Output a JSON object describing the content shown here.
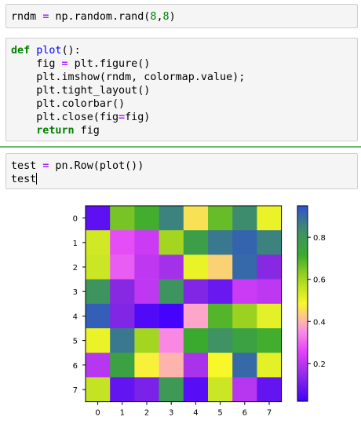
{
  "cells": [
    {
      "tokens": [
        {
          "t": "rndm ",
          "c": ""
        },
        {
          "t": "=",
          "c": "op"
        },
        {
          "t": " np.random.rand(",
          "c": ""
        },
        {
          "t": "8",
          "c": "num"
        },
        {
          "t": ",",
          "c": ""
        },
        {
          "t": "8",
          "c": "num"
        },
        {
          "t": ")",
          "c": ""
        }
      ]
    }
  ],
  "cell2_lines": [
    [
      {
        "t": "def",
        "c": "kw"
      },
      {
        "t": " ",
        "c": ""
      },
      {
        "t": "plot",
        "c": "fn"
      },
      {
        "t": "():",
        "c": ""
      }
    ],
    [
      {
        "t": "    fig ",
        "c": ""
      },
      {
        "t": "=",
        "c": "op"
      },
      {
        "t": " plt.figure()",
        "c": ""
      }
    ],
    [
      {
        "t": "    plt.imshow(rndm, colormap.value);",
        "c": ""
      }
    ],
    [
      {
        "t": "    plt.tight_layout()",
        "c": ""
      }
    ],
    [
      {
        "t": "    plt.colorbar()",
        "c": ""
      }
    ],
    [
      {
        "t": "    plt.close(fig",
        "c": ""
      },
      {
        "t": "=",
        "c": "op"
      },
      {
        "t": "fig)",
        "c": ""
      }
    ],
    [
      {
        "t": "    ",
        "c": ""
      },
      {
        "t": "return",
        "c": "kw"
      },
      {
        "t": " fig",
        "c": ""
      }
    ]
  ],
  "cell3_lines": [
    [
      {
        "t": "test ",
        "c": ""
      },
      {
        "t": "=",
        "c": "op"
      },
      {
        "t": " pn.Row(plot())",
        "c": ""
      }
    ],
    [
      {
        "t": "test",
        "c": ""
      }
    ]
  ],
  "chart_data": {
    "type": "heatmap",
    "x_ticks": [
      "0",
      "1",
      "2",
      "3",
      "4",
      "5",
      "6",
      "7"
    ],
    "y_ticks": [
      "0",
      "1",
      "2",
      "3",
      "4",
      "5",
      "6",
      "7"
    ],
    "colorbar_ticks": [
      "0.2",
      "0.4",
      "0.6",
      "0.8"
    ],
    "colorbar_range": [
      0.02,
      0.95
    ],
    "colormap_stops": [
      "#3f00ff",
      "#8a2be2",
      "#e040fb",
      "#ff9ae0",
      "#f7f72a",
      "#a8d820",
      "#3aaa2f",
      "#3f8f6a",
      "#3050d0"
    ],
    "values": [
      [
        0.05,
        0.68,
        0.74,
        0.9,
        0.47,
        0.7,
        0.88,
        0.52
      ],
      [
        0.56,
        0.27,
        0.22,
        0.63,
        0.8,
        0.92,
        0.96,
        0.9
      ],
      [
        0.57,
        0.29,
        0.2,
        0.16,
        0.52,
        0.45,
        0.95,
        0.12
      ],
      [
        0.85,
        0.12,
        0.2,
        0.85,
        0.11,
        0.07,
        0.22,
        0.2
      ],
      [
        0.97,
        0.11,
        0.03,
        0.01,
        0.39,
        0.72,
        0.64,
        0.53
      ],
      [
        0.52,
        0.92,
        0.63,
        0.35,
        0.75,
        0.86,
        0.79,
        0.74
      ],
      [
        0.19,
        0.79,
        0.49,
        0.41,
        0.17,
        0.5,
        0.95,
        0.53
      ],
      [
        0.58,
        0.06,
        0.1,
        0.83,
        0.04,
        0.57,
        0.19,
        0.06
      ]
    ]
  }
}
